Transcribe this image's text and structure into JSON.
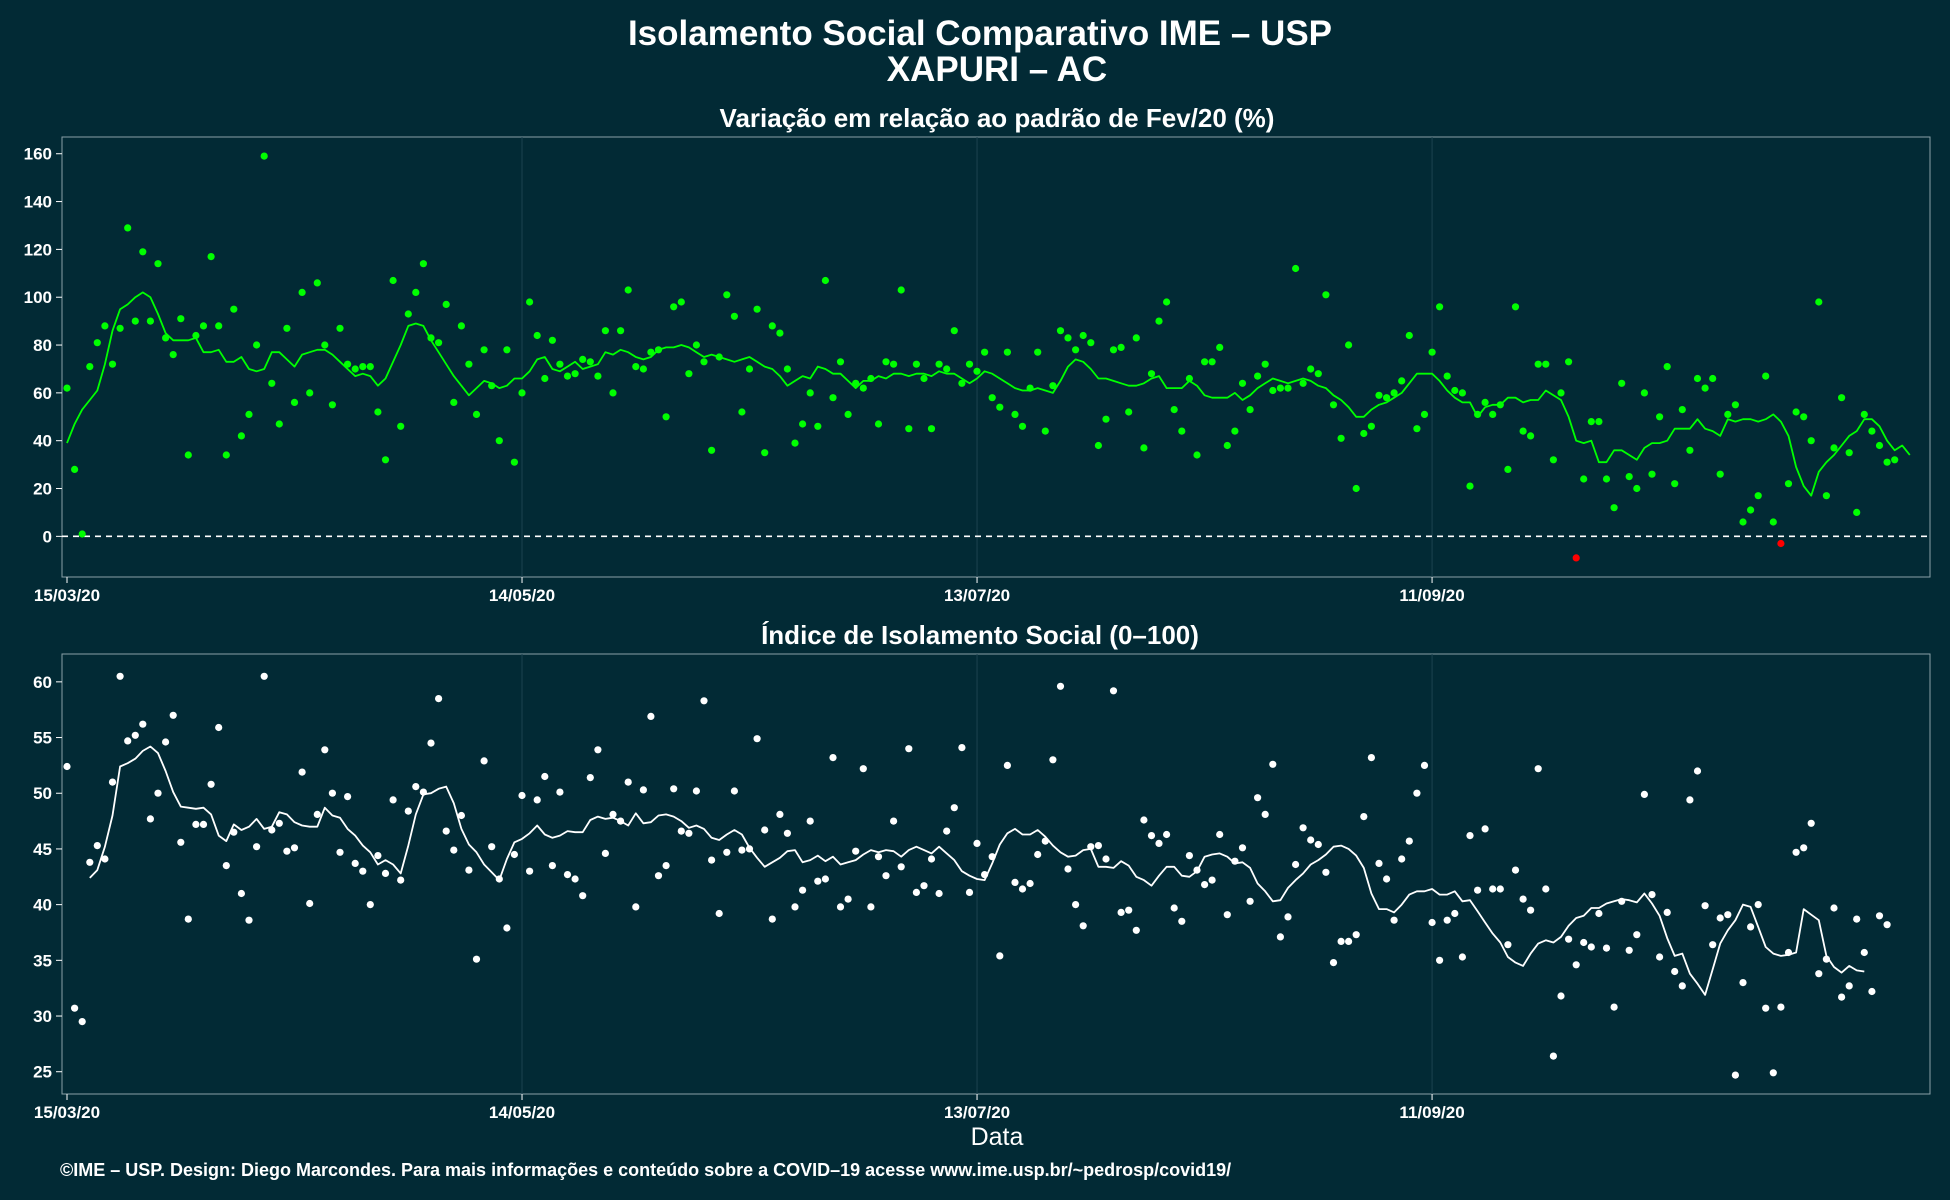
{
  "figure": {
    "title_line1": "Isolamento Social Comparativo IME – USP",
    "title_line2": "XAPURI – AC",
    "caption": "©IME – USP. Design: Diego Marcondes. Para mais informações e conteúdo sobre a COVID–19 acesse www.ime.usp.br/~pedrosp/covid19/",
    "colors": {
      "background": "#022a35",
      "panel_border": "#8aa0a8",
      "grid": "#1c4350",
      "green": "#00ff00",
      "red": "#ff0000",
      "white": "#ffffff"
    }
  },
  "chart_data": [
    {
      "type": "scatter",
      "title": "Variação em relação ao padrão de Fev/20 (%)",
      "xlabel": "",
      "ylabel": "",
      "x_start": "15/03/20",
      "x_days": 246,
      "xticks": [
        {
          "day": 0,
          "label": "15/03/20"
        },
        {
          "day": 60,
          "label": "14/05/20"
        },
        {
          "day": 120,
          "label": "13/07/20"
        },
        {
          "day": 180,
          "label": "11/09/20"
        }
      ],
      "ylim": [
        -17,
        167
      ],
      "yticks": [
        0,
        20,
        40,
        60,
        80,
        100,
        120,
        140,
        160
      ],
      "reference_line": 0,
      "grid": "vertical at x ticks",
      "series": [
        {
          "kind": "daily points (green when ≥ 0, red when < 0)",
          "values": [
            62,
            28,
            1,
            71,
            81,
            88,
            72,
            87,
            129,
            90,
            119,
            90,
            114,
            83,
            76,
            91,
            34,
            84,
            88,
            117,
            88,
            34,
            95,
            42,
            51,
            80,
            159,
            64,
            47,
            87,
            56,
            102,
            60,
            106,
            80,
            55,
            87,
            72,
            70,
            71,
            71,
            52,
            32,
            107,
            46,
            93,
            102,
            114,
            83,
            81,
            97,
            56,
            88,
            72,
            51,
            78,
            63,
            40,
            78,
            31,
            60,
            98,
            84,
            66,
            82,
            72,
            67,
            68,
            74,
            73,
            67,
            86,
            60,
            86,
            103,
            71,
            70,
            77,
            78,
            50,
            96,
            98,
            68,
            80,
            73,
            36,
            75,
            101,
            92,
            52,
            70,
            95,
            35,
            88,
            85,
            70,
            39,
            47,
            60,
            46,
            107,
            58,
            73,
            51,
            64,
            62,
            66,
            47,
            73,
            72,
            103,
            45,
            72,
            66,
            45,
            72,
            70,
            86,
            64,
            72,
            69,
            77,
            58,
            54,
            77,
            51,
            46,
            62,
            77,
            44,
            63,
            86,
            83,
            78,
            84,
            81,
            38,
            49,
            78,
            79,
            52,
            83,
            37,
            68,
            90,
            98,
            53,
            44,
            66,
            34,
            73,
            73,
            79,
            38,
            44,
            64,
            53,
            67,
            72,
            61,
            62,
            62,
            112,
            64,
            70,
            68,
            101,
            55,
            41,
            80,
            20,
            43,
            46,
            59,
            58,
            60,
            65,
            84,
            45,
            51,
            77,
            96,
            67,
            61,
            60,
            21,
            51,
            56,
            51,
            55,
            28,
            96,
            44,
            42,
            72,
            72,
            32,
            60,
            73,
            -9,
            24,
            48,
            48,
            24,
            12,
            64,
            25,
            20,
            60,
            26,
            50,
            71,
            22,
            53,
            36,
            66,
            62,
            66,
            26,
            51,
            55,
            6,
            11,
            17,
            67,
            6,
            -3,
            22,
            52,
            50,
            40,
            98,
            17,
            37,
            58,
            35,
            10,
            51,
            44,
            38,
            31,
            32
          ],
          "color": "#00ff00",
          "negative_color": "#ff0000"
        },
        {
          "kind": "7-day moving average line (green when ≥ 0)",
          "x_from_day": 0,
          "values": [
            39,
            47,
            53,
            57,
            61,
            72,
            86,
            95,
            97,
            100,
            102,
            100,
            93,
            85,
            82,
            82,
            82,
            83,
            77,
            77,
            78,
            73,
            73,
            75,
            70,
            69,
            70,
            77,
            77,
            74,
            71,
            76,
            77,
            78,
            78,
            76,
            73,
            70,
            67,
            68,
            67,
            63,
            66,
            73,
            80,
            88,
            89,
            88,
            82,
            77,
            72,
            67,
            63,
            59,
            62,
            65,
            64,
            62,
            63,
            66,
            66,
            69,
            74,
            75,
            70,
            69,
            71,
            73,
            70,
            71,
            72,
            77,
            76,
            78,
            77,
            75,
            74,
            75,
            78,
            79,
            79,
            80,
            79,
            77,
            75,
            76,
            75,
            74,
            73,
            74,
            75,
            73,
            71,
            70,
            67,
            63,
            65,
            67,
            66,
            71,
            70,
            68,
            68,
            65,
            62,
            65,
            65,
            67,
            66,
            68,
            68,
            67,
            68,
            68,
            67,
            69,
            68,
            68,
            66,
            64,
            66,
            69,
            68,
            66,
            64,
            62,
            61,
            61,
            62,
            61,
            60,
            65,
            71,
            74,
            73,
            70,
            66,
            66,
            65,
            64,
            63,
            63,
            64,
            66,
            67,
            62,
            62,
            62,
            65,
            63,
            59,
            58,
            58,
            58,
            60,
            57,
            59,
            62,
            64,
            66,
            65,
            64,
            65,
            66,
            65,
            63,
            62,
            59,
            57,
            54,
            50,
            50,
            53,
            55,
            56,
            58,
            60,
            64,
            68,
            68,
            68,
            65,
            61,
            58,
            56,
            56,
            50,
            54,
            55,
            55,
            58,
            58,
            56,
            57,
            57,
            61,
            59,
            57,
            50,
            40,
            39,
            40,
            31,
            31,
            36,
            36,
            34,
            32,
            37,
            39,
            39,
            40,
            45,
            45,
            45,
            49,
            45,
            44,
            42,
            49,
            48,
            49,
            49,
            48,
            49,
            51,
            48,
            42,
            29,
            21,
            17,
            27,
            31,
            34,
            38,
            42,
            44,
            49,
            49,
            46,
            40,
            36,
            38,
            34
          ]
        }
      ]
    },
    {
      "type": "scatter",
      "title": "Índice de Isolamento Social (0–100)",
      "xlabel": "Data",
      "ylabel": "",
      "x_start": "15/03/20",
      "x_days": 246,
      "xticks": [
        {
          "day": 0,
          "label": "15/03/20"
        },
        {
          "day": 60,
          "label": "14/05/20"
        },
        {
          "day": 120,
          "label": "13/07/20"
        },
        {
          "day": 180,
          "label": "11/09/20"
        }
      ],
      "ylim": [
        23,
        62.5
      ],
      "yticks": [
        25,
        30,
        35,
        40,
        45,
        50,
        55,
        60
      ],
      "grid": "vertical at x ticks",
      "series": [
        {
          "kind": "daily points",
          "values": [
            52.4,
            30.7,
            29.5,
            43.8,
            45.3,
            44.1,
            51.0,
            60.5,
            54.7,
            55.2,
            56.2,
            47.7,
            50.0,
            54.6,
            57.0,
            45.6,
            38.7,
            47.2,
            47.2,
            50.8,
            55.9,
            43.5,
            46.5,
            41.0,
            38.6,
            45.2,
            60.5,
            46.7,
            47.3,
            44.8,
            45.1,
            51.9,
            40.1,
            48.1,
            53.9,
            50.0,
            44.7,
            49.7,
            43.7,
            43.0,
            40.0,
            44.4,
            42.8,
            49.4,
            42.2,
            48.4,
            50.6,
            50.1,
            54.5,
            58.5,
            46.6,
            44.9,
            48.0,
            43.1,
            35.1,
            52.9,
            45.2,
            42.3,
            37.9,
            44.5,
            49.8,
            43.0,
            49.4,
            51.5,
            43.5,
            50.1,
            42.7,
            42.3,
            40.8,
            51.4,
            53.9,
            44.6,
            48.1,
            47.5,
            51.0,
            39.8,
            50.3,
            56.9,
            42.6,
            43.5,
            50.4,
            46.6,
            46.4,
            50.2,
            58.3,
            44.0,
            39.2,
            44.7,
            50.2,
            44.9,
            45.0,
            54.9,
            46.7,
            38.7,
            48.1,
            46.4,
            39.8,
            41.3,
            47.5,
            42.1,
            42.3,
            53.2,
            39.8,
            40.5,
            44.8,
            52.2,
            39.8,
            44.3,
            42.6,
            47.5,
            43.4,
            54.0,
            41.1,
            41.7,
            44.1,
            41.0,
            46.6,
            48.7,
            54.1,
            41.1,
            45.5,
            42.7,
            44.3,
            35.4,
            52.5,
            42.0,
            41.4,
            41.9,
            44.5,
            45.7,
            53.0,
            59.6,
            43.2,
            40.0,
            38.1,
            45.2,
            45.3,
            44.1,
            59.2,
            39.3,
            39.5,
            37.7,
            47.6,
            46.2,
            45.5,
            46.3,
            39.7,
            38.5,
            44.4,
            43.1,
            41.8,
            42.2,
            46.3,
            39.1,
            43.9,
            45.1,
            40.3,
            49.6,
            48.1,
            52.6,
            37.1,
            38.9,
            43.6,
            46.9,
            45.8,
            45.4,
            42.9,
            34.8,
            36.7,
            36.7,
            37.3,
            47.9,
            53.2,
            43.7,
            42.3,
            38.6,
            44.1,
            45.7,
            50.0,
            52.5,
            38.4,
            35.0,
            38.6,
            39.2,
            35.3,
            46.2,
            41.3,
            46.8,
            41.4,
            41.4,
            36.4,
            43.1,
            40.5,
            39.5,
            52.2,
            41.4,
            26.4,
            31.8,
            36.9,
            34.6,
            36.6,
            36.2,
            39.2,
            36.1,
            30.8,
            40.3,
            35.9,
            37.3,
            49.9,
            40.9,
            35.3,
            39.3,
            34.0,
            32.7,
            49.4,
            52.0,
            39.9,
            36.4,
            38.8,
            39.1,
            24.7,
            33.0,
            38.0,
            40.0,
            30.7,
            24.9,
            30.8,
            35.7,
            44.7,
            45.1,
            47.3,
            33.8,
            35.1,
            39.7,
            31.7,
            32.7,
            38.7,
            35.7,
            32.2,
            39.0,
            38.2
          ]
        },
        {
          "kind": "7-day moving average line",
          "x_from_day": 3,
          "values": [
            42.4,
            43.1,
            45.2,
            48.0,
            52.4,
            52.7,
            53.1,
            53.8,
            54.2,
            53.6,
            52.0,
            50.1,
            48.8,
            48.7,
            48.6,
            48.7,
            48.1,
            46.2,
            45.7,
            47.2,
            46.7,
            47.0,
            47.7,
            46.8,
            47.0,
            48.3,
            48.1,
            47.4,
            47.1,
            47.0,
            47.0,
            48.7,
            48.0,
            47.8,
            46.8,
            46.2,
            45.3,
            44.7,
            43.6,
            44.0,
            43.6,
            42.8,
            45.3,
            48.1,
            49.9,
            50.0,
            50.4,
            50.6,
            49.1,
            46.8,
            45.4,
            44.7,
            43.6,
            42.9,
            42.2,
            44.1,
            45.6,
            45.9,
            46.4,
            47.1,
            46.3,
            46.0,
            46.2,
            46.6,
            46.5,
            46.5,
            47.6,
            47.9,
            47.7,
            47.8,
            47.5,
            47.1,
            48.2,
            47.3,
            47.4,
            48.0,
            48.1,
            47.9,
            47.5,
            46.9,
            47.1,
            46.8,
            46.0,
            45.8,
            46.3,
            46.7,
            46.3,
            45.1,
            44.2,
            43.4,
            43.8,
            44.2,
            44.8,
            44.9,
            43.8,
            44.0,
            44.4,
            43.9,
            44.3,
            43.6,
            43.8,
            44.0,
            44.5,
            44.9,
            44.7,
            44.9,
            44.8,
            44.3,
            44.9,
            45.2,
            44.9,
            44.6,
            45.2,
            44.6,
            44.0,
            43.0,
            42.6,
            42.3,
            42.2,
            43.7,
            45.4,
            46.4,
            46.8,
            46.3,
            46.3,
            46.7,
            46.1,
            45.3,
            44.7,
            44.3,
            44.4,
            44.9,
            45.0,
            43.4,
            43.4,
            43.3,
            43.9,
            43.5,
            42.5,
            42.2,
            41.7,
            42.6,
            43.4,
            43.4,
            42.6,
            42.5,
            43.0,
            44.3,
            44.5,
            44.6,
            44.3,
            43.7,
            43.8,
            43.3,
            41.9,
            41.2,
            40.3,
            40.4,
            41.5,
            42.2,
            42.8,
            43.6,
            44.0,
            44.5,
            45.2,
            45.3,
            45.0,
            44.4,
            43.3,
            41.0,
            39.6,
            39.6,
            39.3,
            40.0,
            40.9,
            41.2,
            41.2,
            41.4,
            40.9,
            40.9,
            41.2,
            40.3,
            40.4,
            39.4,
            38.4,
            37.4,
            36.6,
            35.3,
            34.8,
            34.5,
            35.6,
            36.5,
            36.8,
            36.6,
            37.1,
            38.1,
            38.8,
            39.0,
            39.7,
            39.7,
            40.1,
            40.3,
            40.5,
            40.4,
            40.2,
            41.0,
            40.1,
            39.0,
            37.0,
            35.4,
            35.6,
            33.8,
            32.9,
            31.9,
            34.2,
            36.5,
            37.7,
            38.6,
            40.0,
            39.8,
            38.0,
            36.2,
            35.6,
            35.4,
            35.5,
            35.7,
            39.6,
            39.1,
            38.6,
            35.4,
            34.4,
            33.9,
            34.5,
            34.1,
            34.0
          ]
        }
      ]
    }
  ]
}
